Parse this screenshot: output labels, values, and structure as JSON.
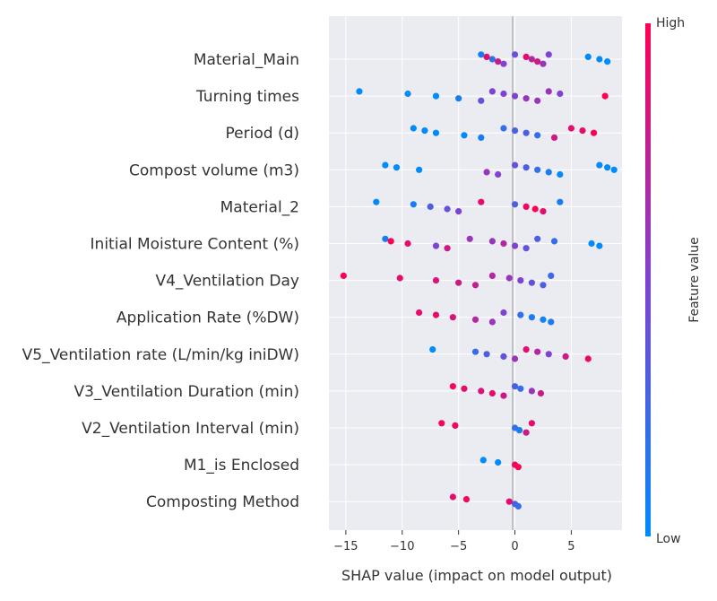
{
  "chart_data": {
    "type": "scatter",
    "subtype": "shap-beeswarm",
    "title": "",
    "xlabel": "SHAP value (impact on model output)",
    "ylabel": "",
    "xlim": [
      -16.5,
      9.5
    ],
    "xticks": [
      -15,
      -10,
      -5,
      0,
      5
    ],
    "xtick_labels": [
      "−15",
      "−10",
      "−5",
      "0",
      "5"
    ],
    "grid": "horizontal-lines",
    "colorbar": {
      "title": "Feature value",
      "high_label": "High",
      "low_label": "Low",
      "low_color": "#008bfb",
      "high_color": "#ff0052"
    },
    "features": [
      {
        "name": "Material_Main",
        "points": [
          [
            -3,
            0.1
          ],
          [
            -2.5,
            0.9
          ],
          [
            -2,
            0.2
          ],
          [
            -1.5,
            0.8
          ],
          [
            -1,
            0.5
          ],
          [
            0,
            0.4
          ],
          [
            1,
            0.9
          ],
          [
            1.5,
            0.7
          ],
          [
            2,
            0.8
          ],
          [
            2.5,
            0.6
          ],
          [
            3,
            0.5
          ],
          [
            6.5,
            0.0
          ],
          [
            7.5,
            0.0
          ],
          [
            8.2,
            0.0
          ]
        ]
      },
      {
        "name": "Turning times",
        "points": [
          [
            -13.8,
            0.0
          ],
          [
            -9.5,
            0.0
          ],
          [
            -7,
            0.0
          ],
          [
            -5,
            0.1
          ],
          [
            -3,
            0.4
          ],
          [
            -2,
            0.5
          ],
          [
            -1,
            0.5
          ],
          [
            0,
            0.5
          ],
          [
            1,
            0.6
          ],
          [
            2,
            0.6
          ],
          [
            3,
            0.6
          ],
          [
            4,
            0.5
          ],
          [
            8,
            1.0
          ]
        ]
      },
      {
        "name": "Period (d)",
        "points": [
          [
            -9,
            0.0
          ],
          [
            -8,
            0.0
          ],
          [
            -7,
            0.0
          ],
          [
            -4.5,
            0.0
          ],
          [
            -3,
            0.1
          ],
          [
            -1,
            0.2
          ],
          [
            0,
            0.3
          ],
          [
            1,
            0.3
          ],
          [
            2,
            0.2
          ],
          [
            3.5,
            0.8
          ],
          [
            5,
            0.9
          ],
          [
            6,
            0.9
          ],
          [
            7,
            1.0
          ]
        ]
      },
      {
        "name": "Compost volume (m3)",
        "points": [
          [
            -11.5,
            0.0
          ],
          [
            -10.5,
            0.0
          ],
          [
            -8.5,
            0.0
          ],
          [
            -2.5,
            0.6
          ],
          [
            -1.5,
            0.5
          ],
          [
            0,
            0.4
          ],
          [
            1,
            0.3
          ],
          [
            2,
            0.2
          ],
          [
            3,
            0.1
          ],
          [
            4,
            0.0
          ],
          [
            7.5,
            0.0
          ],
          [
            8.2,
            0.0
          ],
          [
            8.8,
            0.0
          ]
        ]
      },
      {
        "name": "Material_2",
        "points": [
          [
            -12.3,
            0.0
          ],
          [
            -9,
            0.1
          ],
          [
            -7.5,
            0.3
          ],
          [
            -6,
            0.4
          ],
          [
            -5,
            0.5
          ],
          [
            -3,
            0.9
          ],
          [
            0,
            0.3
          ],
          [
            1,
            0.95
          ],
          [
            1.8,
            1.0
          ],
          [
            2.5,
            0.9
          ],
          [
            4,
            0.1
          ]
        ]
      },
      {
        "name": "Initial Moisture Content (%)",
        "points": [
          [
            -11.5,
            0.1
          ],
          [
            -11,
            1.0
          ],
          [
            -9.5,
            0.9
          ],
          [
            -7,
            0.5
          ],
          [
            -6,
            0.8
          ],
          [
            -4,
            0.6
          ],
          [
            -2,
            0.6
          ],
          [
            -1,
            0.7
          ],
          [
            0,
            0.5
          ],
          [
            1,
            0.4
          ],
          [
            2,
            0.3
          ],
          [
            3.5,
            0.2
          ],
          [
            6.8,
            0.0
          ],
          [
            7.5,
            0.0
          ]
        ]
      },
      {
        "name": "V4_Ventilation Day",
        "points": [
          [
            -15.2,
            1.0
          ],
          [
            -10.2,
            0.9
          ],
          [
            -7,
            0.85
          ],
          [
            -5,
            0.8
          ],
          [
            -3.5,
            0.75
          ],
          [
            -2,
            0.7
          ],
          [
            -0.5,
            0.6
          ],
          [
            0.5,
            0.5
          ],
          [
            1.5,
            0.4
          ],
          [
            2.5,
            0.3
          ],
          [
            3.2,
            0.25
          ]
        ]
      },
      {
        "name": "Application Rate (%DW)",
        "points": [
          [
            -8.5,
            0.9
          ],
          [
            -7,
            0.9
          ],
          [
            -5.5,
            0.85
          ],
          [
            -3.5,
            0.7
          ],
          [
            -2,
            0.6
          ],
          [
            -1,
            0.5
          ],
          [
            0.5,
            0.2
          ],
          [
            1.5,
            0.1
          ],
          [
            2.5,
            0.05
          ],
          [
            3.2,
            0.1
          ]
        ]
      },
      {
        "name": "V5_Ventilation rate (L/min/kg iniDW)",
        "points": [
          [
            -7.3,
            0.0
          ],
          [
            -3.5,
            0.2
          ],
          [
            -2.5,
            0.3
          ],
          [
            -1,
            0.4
          ],
          [
            0,
            0.6
          ],
          [
            1,
            0.9
          ],
          [
            2,
            0.7
          ],
          [
            3,
            0.5
          ],
          [
            4.5,
            0.8
          ],
          [
            6.5,
            0.95
          ]
        ]
      },
      {
        "name": "V3_Ventilation Duration (min)",
        "points": [
          [
            -5.5,
            0.95
          ],
          [
            -4.5,
            0.9
          ],
          [
            -3,
            0.85
          ],
          [
            -2,
            0.9
          ],
          [
            -1,
            0.8
          ],
          [
            0,
            0.3
          ],
          [
            0.5,
            0.2
          ],
          [
            1.5,
            0.6
          ],
          [
            2.3,
            0.8
          ]
        ]
      },
      {
        "name": "V2_Ventilation Interval (min)",
        "points": [
          [
            -6.5,
            0.95
          ],
          [
            -5.3,
            0.95
          ],
          [
            0,
            0.2
          ],
          [
            0.4,
            0.1
          ],
          [
            1,
            0.8
          ],
          [
            1.5,
            0.9
          ]
        ]
      },
      {
        "name": "M1_is Enclosed",
        "points": [
          [
            -2.8,
            0.0
          ],
          [
            -1.5,
            0.0
          ],
          [
            0,
            0.95
          ],
          [
            0.3,
            1.0
          ]
        ]
      },
      {
        "name": "Composting Method",
        "points": [
          [
            -5.5,
            0.9
          ],
          [
            -4.3,
            0.95
          ],
          [
            -0.5,
            0.9
          ],
          [
            0,
            0.3
          ],
          [
            0.3,
            0.2
          ]
        ]
      }
    ]
  }
}
